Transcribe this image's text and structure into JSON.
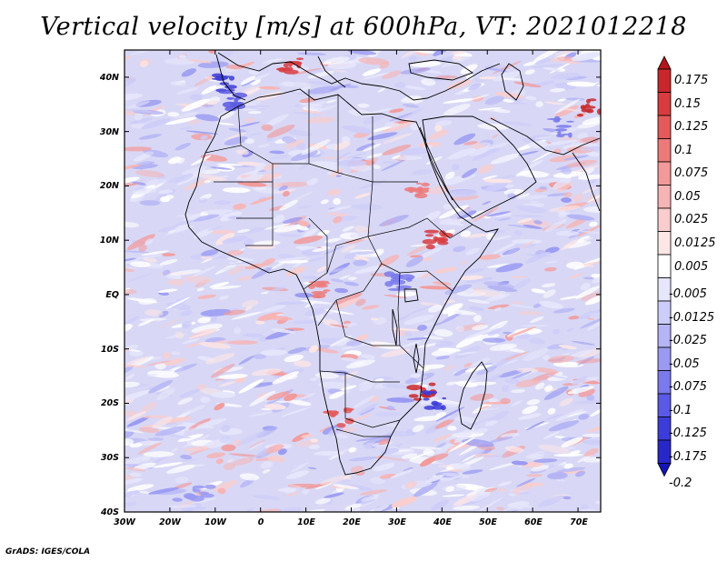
{
  "title": "Vertical velocity [m/s] at 600hPa, VT: 2021012218",
  "footer": "GrADS: IGES/COLA",
  "map": {
    "variable": "Vertical velocity",
    "units": "m/s",
    "level": "600hPa",
    "valid_time": "2021012218",
    "lon_range": [
      -30,
      75
    ],
    "lat_range": [
      -40,
      45
    ],
    "lon_ticks": [
      "30W",
      "20W",
      "10W",
      "0",
      "10E",
      "20E",
      "30E",
      "40E",
      "50E",
      "60E",
      "70E"
    ],
    "lat_ticks": [
      "40N",
      "30N",
      "20N",
      "10N",
      "EQ",
      "10S",
      "20S",
      "30S",
      "40S"
    ]
  },
  "colorbar": {
    "levels": [
      "0.175",
      "0.15",
      "0.125",
      "0.1",
      "0.075",
      "0.05",
      "0.025",
      "0.0125",
      "0.005",
      "-0.005",
      "-0.0125",
      "-0.025",
      "-0.05",
      "-0.075",
      "-0.1",
      "-0.125",
      "-0.175",
      "-0.2"
    ],
    "colors": [
      "#b4141c",
      "#c8282c",
      "#d83c40",
      "#e45a5c",
      "#ec7a7a",
      "#f29a9a",
      "#f6b4b4",
      "#f9cdcd",
      "#fce6e6",
      "#ffffff",
      "#e6e6fc",
      "#cdcdf9",
      "#b4b4f6",
      "#9a9af2",
      "#7a7aec",
      "#5a5ae4",
      "#3c3cd8",
      "#2828c8",
      "#1414b4"
    ]
  }
}
